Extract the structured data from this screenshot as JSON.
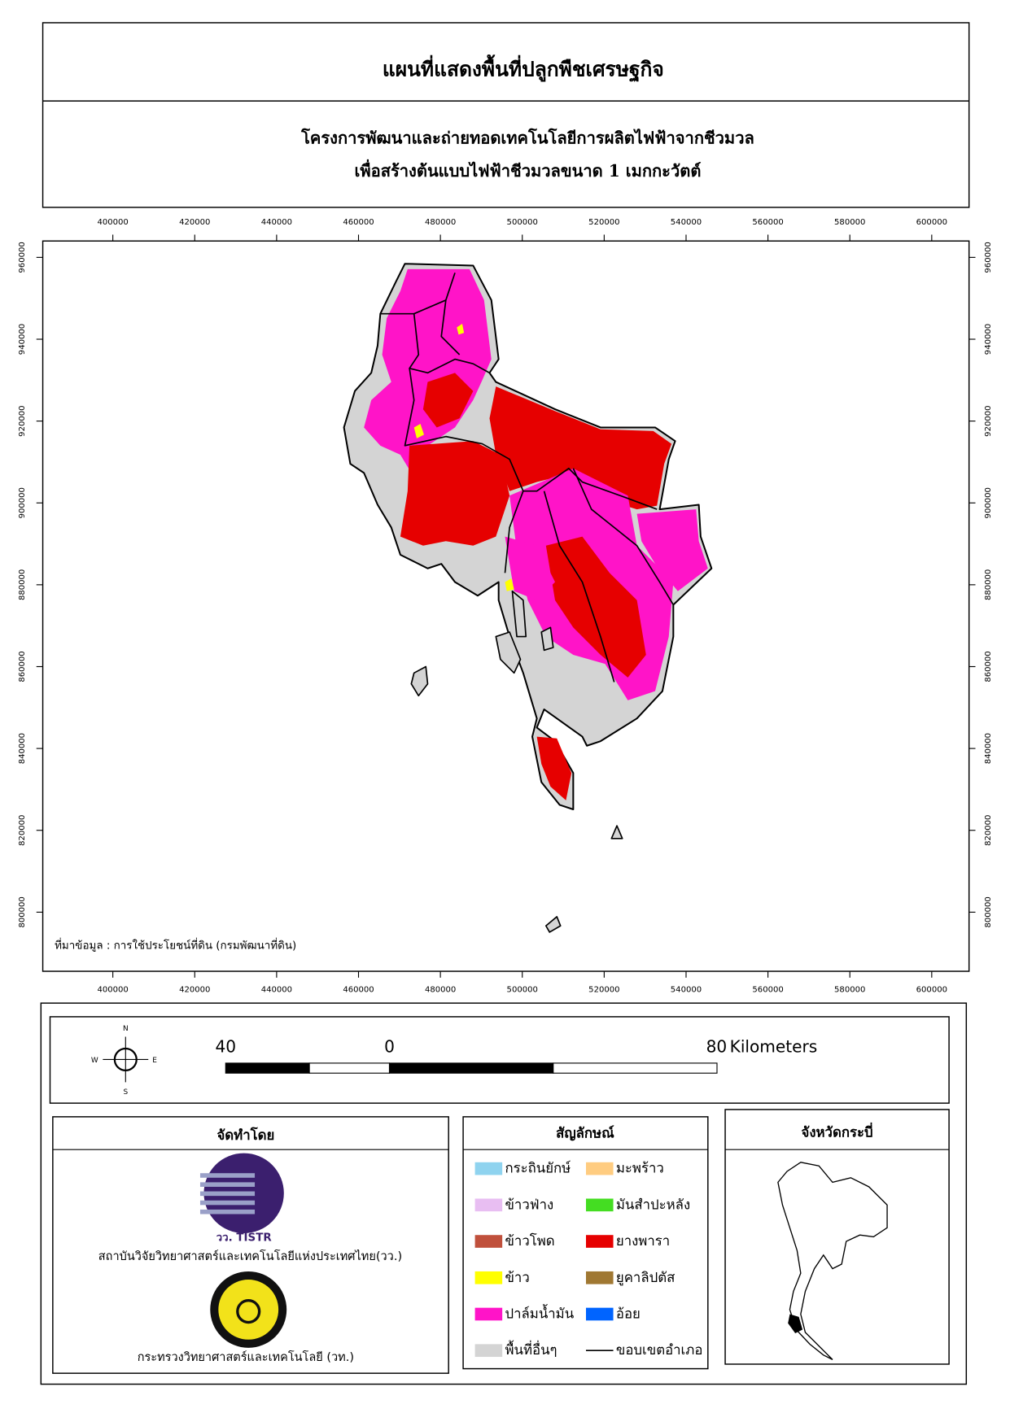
{
  "header": {
    "title": "แผนที่แสดงพื้นที่ปลูกพืชเศรษฐกิจ",
    "subtitle_lines": [
      "โครงการพัฒนาและถ่ายทอดเทคโนโลยีการผลิตไฟฟ้าจากชีวมวล",
      "เพื่อสร้างต้นแบบไฟฟ้าชีวมวลขนาด 1 เมกกะวัตต์"
    ]
  },
  "map": {
    "xticks": [
      400000,
      420000,
      440000,
      460000,
      480000,
      500000,
      520000,
      540000,
      560000,
      580000,
      600000
    ],
    "yticks": [
      800000,
      820000,
      840000,
      860000,
      880000,
      900000,
      920000,
      940000,
      960000
    ],
    "source": "ที่มาข้อมูล : การใช้ประโยชน์ที่ดิน  (กรมพัฒนาที่ดิน)"
  },
  "compass": {
    "north": "N",
    "east": "E",
    "south": "S",
    "west": "W"
  },
  "scale_bar": {
    "labels": [
      "40",
      "0",
      "80"
    ],
    "unit": "Kilometers"
  },
  "producers": {
    "heading": "จัดทำโดย",
    "logo_text": "วว. TISTR",
    "organizations": [
      "สถาบันวิจัยวิทยาศาสตร์และเทคโนโลยีแห่งประเทศไทย(วว.)",
      "กระทรวงวิทยาศาสตร์และเทคโนโลยี (วท.)"
    ]
  },
  "legend": {
    "heading": "สัญลักษณ์",
    "items": [
      {
        "label": "กระถินยักษ์",
        "color": "#8fd3ef",
        "symbol": "fill"
      },
      {
        "label": "ข้าวฟ่าง",
        "color": "#e8bef2",
        "symbol": "fill"
      },
      {
        "label": "ข้าวโพด",
        "color": "#c0503c",
        "symbol": "fill"
      },
      {
        "label": "ข้าว",
        "color": "#ffff00",
        "symbol": "fill"
      },
      {
        "label": "ปาล์มน้ำมัน",
        "color": "#ff14c8",
        "symbol": "fill"
      },
      {
        "label": "พื้นที่อื่นๆ",
        "color": "#d4d4d4",
        "symbol": "fill"
      },
      {
        "label": "มะพร้าว",
        "color": "#ffcc80",
        "symbol": "fill"
      },
      {
        "label": "มันสำปะหลัง",
        "color": "#44dd22",
        "symbol": "fill"
      },
      {
        "label": "ยางพารา",
        "color": "#e60000",
        "symbol": "fill"
      },
      {
        "label": "ยูคาลิปตัส",
        "color": "#a07832",
        "symbol": "fill"
      },
      {
        "label": "อ้อย",
        "color": "#0064ff",
        "symbol": "fill"
      },
      {
        "label": "ขอบเขตอำเภอ",
        "color": "#000000",
        "symbol": "line"
      }
    ]
  },
  "inset": {
    "heading": "จังหวัดกระบี่"
  }
}
